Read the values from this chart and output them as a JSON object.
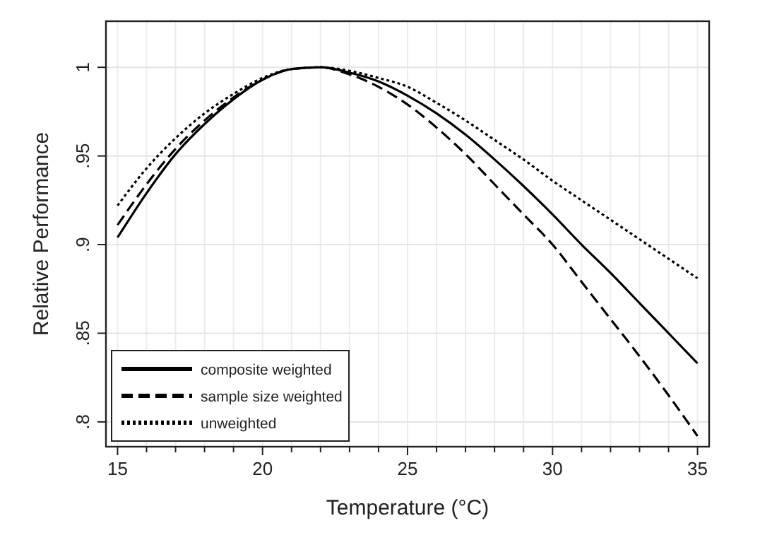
{
  "chart_data": {
    "type": "line",
    "xlabel": "Temperature (°C)",
    "ylabel": "Relative Performance",
    "x": [
      15,
      16,
      17,
      18,
      19,
      20,
      21,
      22,
      23,
      24,
      25,
      26,
      27,
      28,
      29,
      30,
      31,
      32,
      33,
      34,
      35
    ],
    "series": [
      {
        "name": "composite weighted",
        "color": "#000000",
        "line_style": "solid",
        "values": [
          0.904,
          0.929,
          0.951,
          0.968,
          0.982,
          0.993,
          0.999,
          1.0,
          0.997,
          0.992,
          0.984,
          0.974,
          0.962,
          0.948,
          0.933,
          0.917,
          0.9,
          0.884,
          0.867,
          0.85,
          0.833
        ]
      },
      {
        "name": "sample size weighted",
        "color": "#000000",
        "line_style": "dashed",
        "values": [
          0.911,
          0.934,
          0.954,
          0.97,
          0.983,
          0.993,
          0.999,
          1.0,
          0.996,
          0.989,
          0.979,
          0.966,
          0.951,
          0.934,
          0.917,
          0.9,
          0.879,
          0.858,
          0.837,
          0.815,
          0.792
        ]
      },
      {
        "name": "unweighted",
        "color": "#000000",
        "line_style": "dotted",
        "values": [
          0.922,
          0.943,
          0.96,
          0.974,
          0.985,
          0.994,
          0.999,
          1.0,
          0.998,
          0.994,
          0.989,
          0.98,
          0.97,
          0.959,
          0.948,
          0.936,
          0.925,
          0.914,
          0.903,
          0.892,
          0.881
        ]
      }
    ],
    "xlim": [
      14.6,
      35.4
    ],
    "ylim": [
      0.786,
      1.026
    ],
    "xticks": [
      15,
      {
        "value": 16,
        "label": null
      },
      {
        "value": 17,
        "label": null
      },
      {
        "value": 18,
        "label": null
      },
      {
        "value": 19,
        "label": null
      },
      20,
      {
        "value": 21,
        "label": null
      },
      {
        "value": 22,
        "label": null
      },
      {
        "value": 23,
        "label": null
      },
      {
        "value": 24,
        "label": null
      },
      25,
      {
        "value": 26,
        "label": null
      },
      {
        "value": 27,
        "label": null
      },
      {
        "value": 28,
        "label": null
      },
      {
        "value": 29,
        "label": null
      },
      30,
      {
        "value": 31,
        "label": null
      },
      {
        "value": 32,
        "label": null
      },
      {
        "value": 33,
        "label": null
      },
      {
        "value": 34,
        "label": null
      },
      35
    ],
    "yticks": [
      {
        "value": 0.8,
        "label": ".8"
      },
      {
        "value": 0.85,
        "label": ".85"
      },
      {
        "value": 0.9,
        "label": ".9"
      },
      {
        "value": 0.95,
        "label": ".95"
      },
      1
    ],
    "grid": true,
    "legend": "bottom left"
  }
}
